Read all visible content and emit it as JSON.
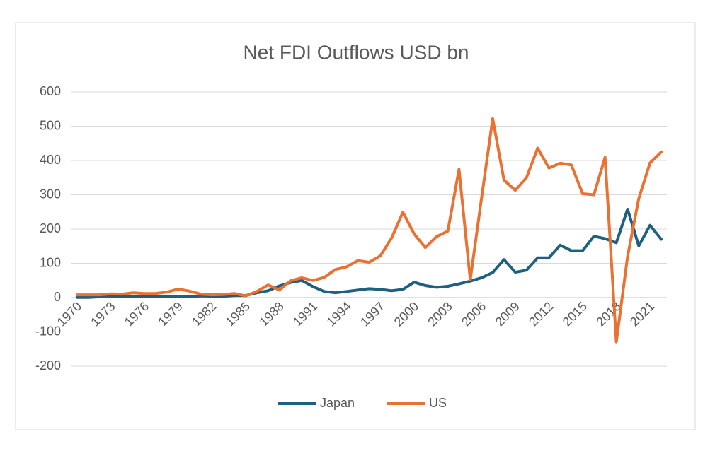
{
  "chart_data": {
    "type": "line",
    "title": "Net FDI Outflows USD bn",
    "categories": [
      "1970",
      null,
      null,
      "1973",
      null,
      null,
      "1976",
      null,
      null,
      "1979",
      null,
      null,
      "1982",
      null,
      null,
      "1985",
      null,
      null,
      "1988",
      null,
      null,
      "1991",
      null,
      null,
      "1994",
      null,
      null,
      "1997",
      null,
      null,
      "2000",
      null,
      null,
      "2003",
      null,
      null,
      "2006",
      null,
      null,
      "2009",
      null,
      null,
      "2012",
      null,
      null,
      "2015",
      null,
      null,
      "2018",
      null,
      null,
      "2021",
      null
    ],
    "series": [
      {
        "name": "Japan",
        "color": "#1f5f7f",
        "values": [
          0.4,
          0.4,
          2.3,
          2,
          2,
          2,
          2,
          2,
          2,
          3,
          2,
          5,
          4,
          4,
          6,
          6,
          14,
          20,
          34,
          44,
          50,
          32,
          18,
          14,
          18,
          22,
          26,
          24,
          20,
          24,
          45,
          35,
          30,
          33,
          40,
          48,
          58,
          73,
          111,
          74,
          80,
          116,
          116,
          153,
          137,
          137,
          179,
          172,
          160,
          258,
          151,
          211,
          170
        ]
      },
      {
        "name": "US",
        "color": "#e97132",
        "values": [
          8,
          8,
          8,
          11,
          10,
          14,
          12,
          12,
          16,
          25,
          19,
          10,
          8,
          9,
          12,
          5,
          18,
          37,
          22,
          49,
          58,
          50,
          59,
          82,
          90,
          108,
          103,
          122,
          174,
          249,
          186,
          146,
          178,
          194,
          374,
          52,
          290,
          522,
          343,
          313,
          350,
          436,
          378,
          392,
          387,
          303,
          300,
          409,
          -129,
          120,
          289,
          393,
          425
        ]
      }
    ],
    "ylim": [
      -200,
      600
    ],
    "yticks": [
      -200,
      -100,
      0,
      100,
      200,
      300,
      400,
      500,
      600
    ],
    "grid": true,
    "legend": "bottom"
  }
}
